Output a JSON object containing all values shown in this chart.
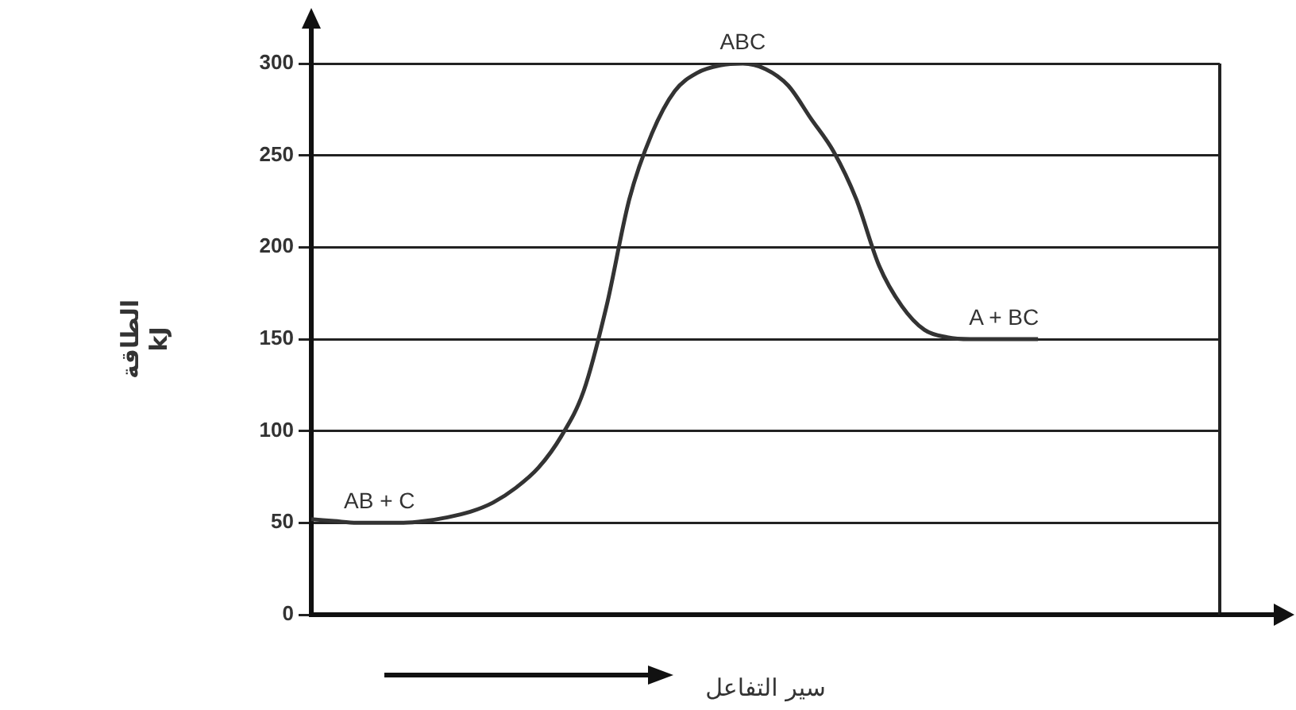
{
  "chart_data": {
    "type": "line",
    "xlabel": "سير التفاعل",
    "ylabel": "الطاقة\nkJ",
    "categories": [
      null,
      null,
      null,
      null,
      null,
      null,
      null,
      null,
      null,
      null,
      null,
      null,
      null,
      null,
      null,
      null,
      null,
      null,
      null,
      null,
      null,
      null,
      null,
      null,
      null,
      null,
      null,
      null,
      null,
      null,
      null,
      null,
      null,
      null,
      null,
      null,
      null,
      null,
      null,
      null,
      null
    ],
    "series": [
      {
        "color": "#333333",
        "values": [
          52,
          51,
          50,
          50,
          50,
          51,
          53,
          56,
          61,
          69,
          80,
          97,
          122,
          168,
          226,
          262,
          285,
          295,
          299,
          300,
          297,
          288,
          270,
          252,
          226,
          190,
          168,
          155,
          151,
          150,
          150,
          150,
          150,
          null,
          null,
          null,
          null,
          null,
          null,
          null,
          null
        ]
      }
    ],
    "ylim": [
      0,
      300
    ],
    "yticks": [
      0,
      50,
      100,
      150,
      200,
      250,
      300
    ],
    "grid": "y",
    "legend": false,
    "marker": "none",
    "line_style": "solid",
    "annotations": [
      {
        "text": "AB + C",
        "y": 50
      },
      {
        "text": "ABC",
        "y": 300
      },
      {
        "text": "A + BC",
        "y": 150
      }
    ]
  }
}
